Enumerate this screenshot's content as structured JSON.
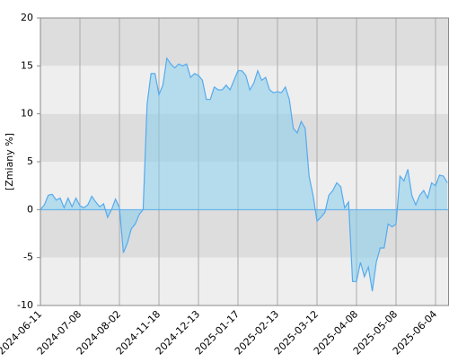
{
  "chart_data": {
    "type": "area",
    "ylabel": "[Zmiany %]",
    "categories": [
      "2024-06-11",
      null,
      null,
      null,
      null,
      null,
      null,
      null,
      null,
      null,
      "2024-07-08",
      null,
      null,
      null,
      null,
      null,
      null,
      null,
      null,
      null,
      "2024-08-02",
      null,
      null,
      null,
      null,
      null,
      null,
      null,
      null,
      null,
      "2024-11-18",
      null,
      null,
      null,
      null,
      null,
      null,
      null,
      null,
      null,
      "2024-12-13",
      null,
      null,
      null,
      null,
      null,
      null,
      null,
      null,
      null,
      "2025-01-17",
      null,
      null,
      null,
      null,
      null,
      null,
      null,
      null,
      null,
      "2025-02-13",
      null,
      null,
      null,
      null,
      null,
      null,
      null,
      null,
      null,
      "2025-03-12",
      null,
      null,
      null,
      null,
      null,
      null,
      null,
      null,
      null,
      "2025-04-08",
      null,
      null,
      null,
      null,
      null,
      null,
      null,
      null,
      null,
      "2025-05-08",
      null,
      null,
      null,
      null,
      null,
      null,
      null,
      null,
      null,
      "2025-06-04",
      null,
      null,
      null
    ],
    "values": [
      0,
      0.5,
      1.5,
      1.6,
      1.0,
      1.2,
      0.2,
      1.2,
      0.3,
      1.2,
      0.4,
      0.2,
      0.5,
      1.4,
      0.8,
      0.3,
      0.6,
      -0.8,
      0,
      1.1,
      0.2,
      -4.5,
      -3.5,
      -2,
      -1.5,
      -0.5,
      0,
      11,
      14.2,
      14.2,
      12,
      13,
      15.8,
      15.2,
      14.8,
      15.2,
      15.0,
      15.2,
      13.8,
      14.2,
      14,
      13.5,
      11.5,
      11.5,
      12.8,
      12.5,
      12.5,
      13,
      12.5,
      13.5,
      14.5,
      14.5,
      14,
      12.5,
      13.2,
      14.5,
      13.5,
      13.8,
      12.5,
      12.2,
      12.3,
      12.2,
      12.8,
      11.5,
      8.5,
      8,
      9.2,
      8.5,
      3.5,
      1.5,
      -1.2,
      -0.8,
      -0.3,
      1.5,
      2,
      2.8,
      2.4,
      0.2,
      0.8,
      -7.5,
      -7.5,
      -5.5,
      -7,
      -6,
      -8.5,
      -5.5,
      -4,
      -4,
      -1.5,
      -1.8,
      -1.5,
      3.5,
      3,
      4.2,
      1.5,
      0.5,
      1.5,
      2,
      1.2,
      2.8,
      2.5,
      3.6,
      3.5,
      2.8
    ],
    "color": "#55aaee",
    "fill_color": "#87ceeb",
    "ylim": [
      -10,
      20
    ],
    "yticks": [
      -10,
      -5,
      0,
      5,
      10,
      15,
      20
    ],
    "band_colors": [
      "#eeeeee",
      "#dddddd"
    ],
    "grid": true
  }
}
